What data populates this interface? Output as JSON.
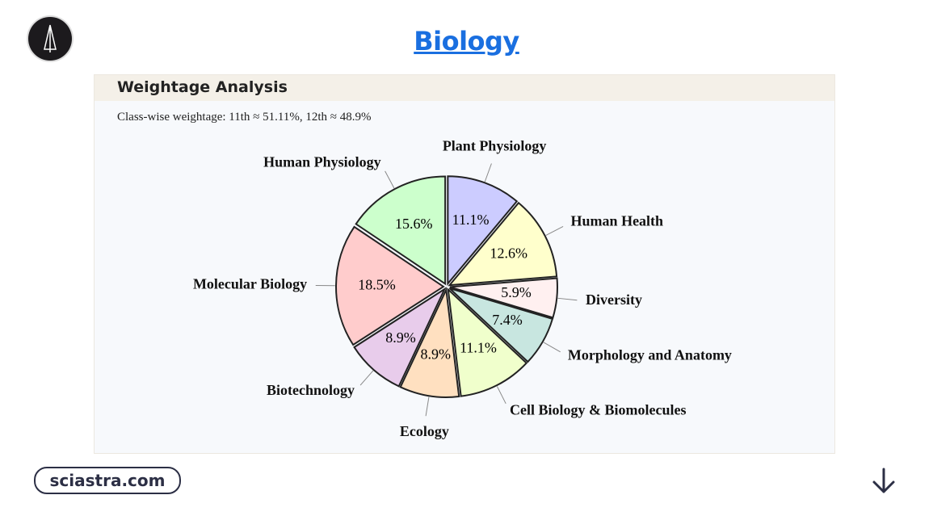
{
  "header": {
    "title": "Biology"
  },
  "panel": {
    "heading": "Weightage Analysis",
    "note": "Class-wise weightage: 11th ≈ 51.11%, 12th ≈ 48.9%"
  },
  "footer": {
    "link": "sciastra.com"
  },
  "chart_data": {
    "type": "pie",
    "categories": [
      "Plant Physiology",
      "Human Health",
      "Diversity",
      "Morphology and Anatomy",
      "Cell Biology & Biomolecules",
      "Ecology",
      "Biotechnology",
      "Molecular Biology",
      "Human Physiology"
    ],
    "values": [
      11.1,
      12.6,
      5.9,
      7.4,
      11.1,
      8.9,
      8.9,
      18.5,
      15.6
    ],
    "value_labels": [
      "11.1%",
      "12.6%",
      "5.9%",
      "7.4%",
      "11.1%",
      "8.9%",
      "8.9%",
      "18.5%",
      "15.6%"
    ],
    "colors": [
      "#ccccff",
      "#ffffcc",
      "#fff0f0",
      "#c8e6e0",
      "#f0ffcc",
      "#ffe0c0",
      "#e8cceb",
      "#ffcccc",
      "#ccffcc"
    ]
  }
}
